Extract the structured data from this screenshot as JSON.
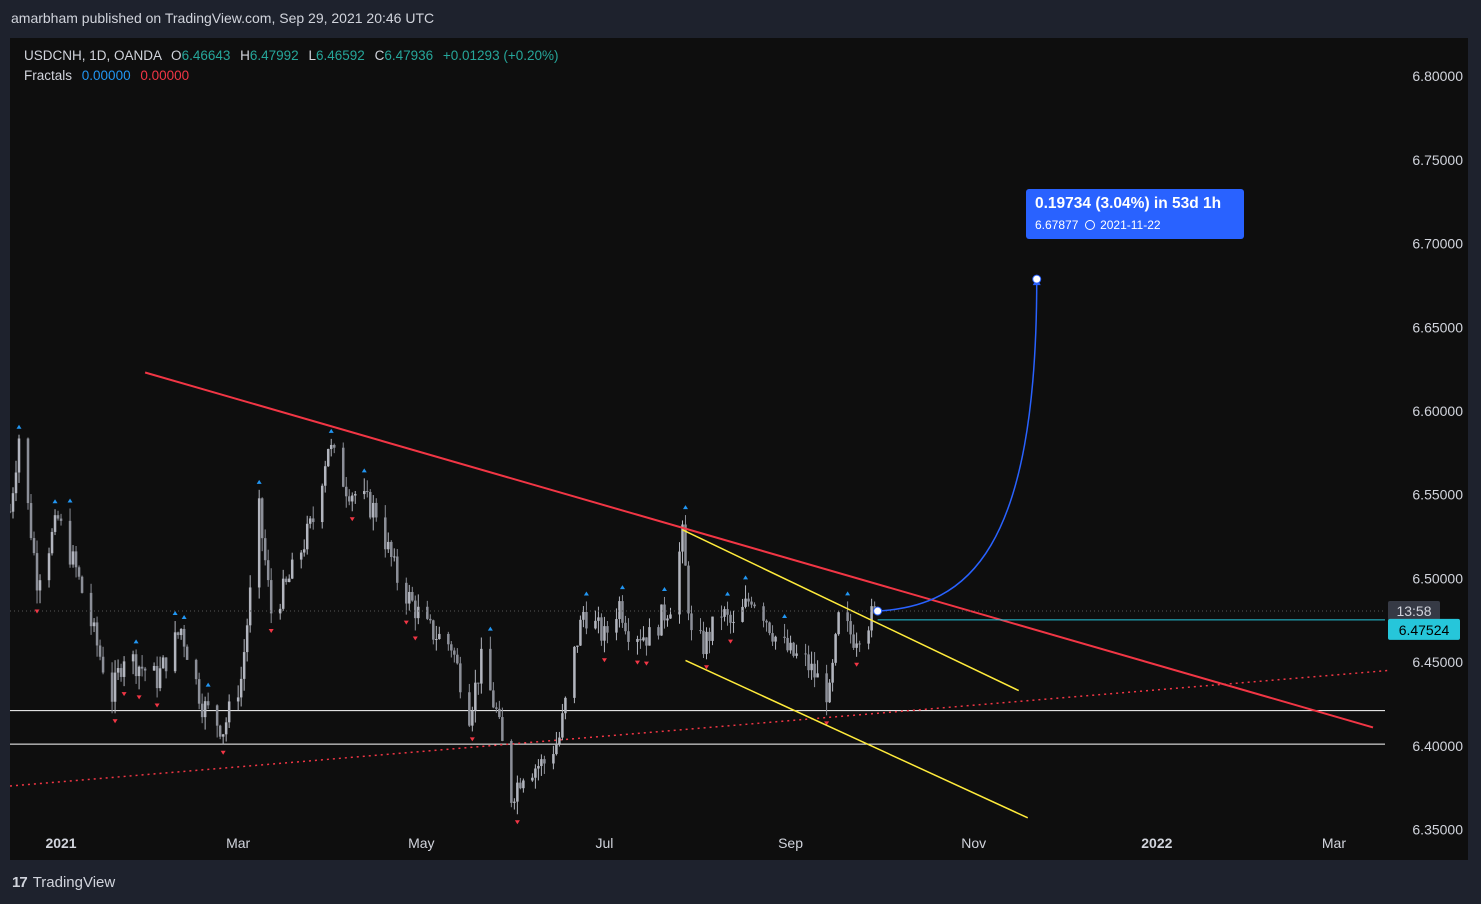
{
  "header": {
    "published": "amarbham published on TradingView.com, Sep 29, 2021 20:46 UTC"
  },
  "legend": {
    "symbol": "USDCNH, 1D, OANDA",
    "o_label": "O",
    "o_value": "6.46643",
    "h_label": "H",
    "h_value": "6.47992",
    "l_label": "L",
    "l_value": "6.46592",
    "c_label": "C",
    "c_value": "6.47936",
    "change": "+0.01293 (+0.20%)",
    "fractals_label": "Fractals",
    "fractals_up": "0.00000",
    "fractals_down": "0.00000"
  },
  "projection": {
    "line1": "0.19734 (3.04%) in 53d 1h",
    "price": "6.67877",
    "date": "2021-11-22"
  },
  "price_labels": {
    "countdown": "13:58",
    "last_price": "6.47524"
  },
  "brand": {
    "name": "TradingView"
  },
  "colors": {
    "bg": "#0e0e0e",
    "frame": "#1e222d",
    "candle_up": "#b2b5be",
    "candle_down": "#8c8f98",
    "trend_red": "#f23645",
    "channel_yellow": "#ffeb3b",
    "support_white": "#ffffff",
    "projection_blue": "#2962ff",
    "last_price_teal": "#26c6da",
    "fractal_up": "#2196f3",
    "fractal_down": "#f23645"
  },
  "chart_data": {
    "type": "candlestick",
    "symbol": "USDCNH",
    "interval": "1D",
    "y_ticks": [
      6.35,
      6.4,
      6.45,
      6.5,
      6.55,
      6.6,
      6.65,
      6.7,
      6.75,
      6.8
    ],
    "y_tick_labels": [
      "6.35000",
      "6.40000",
      "6.45000",
      "6.50000",
      "6.55000",
      "6.60000",
      "6.65000",
      "6.70000",
      "6.75000",
      "6.80000"
    ],
    "ylim": [
      6.3318,
      6.8228
    ],
    "x_range": [
      "2020-12-15",
      "2022-03-18"
    ],
    "x_ticks": [
      {
        "date": "2021-01-01",
        "label": "2021"
      },
      {
        "date": "2021-03-01",
        "label": "Mar"
      },
      {
        "date": "2021-05-01",
        "label": "May"
      },
      {
        "date": "2021-07-01",
        "label": "Jul"
      },
      {
        "date": "2021-09-01",
        "label": "Sep"
      },
      {
        "date": "2021-11-01",
        "label": "Nov"
      },
      {
        "date": "2022-01-01",
        "label": "2022"
      },
      {
        "date": "2022-03-01",
        "label": "Mar"
      }
    ],
    "anchors": [
      {
        "date": "2020-12-15",
        "close": 6.54
      },
      {
        "date": "2020-12-18",
        "close": 6.585
      },
      {
        "date": "2020-12-24",
        "close": 6.5
      },
      {
        "date": "2020-12-31",
        "close": 6.535
      },
      {
        "date": "2021-01-06",
        "close": 6.505
      },
      {
        "date": "2021-01-13",
        "close": 6.46
      },
      {
        "date": "2021-01-18",
        "close": 6.43
      },
      {
        "date": "2021-01-22",
        "close": 6.455
      },
      {
        "date": "2021-02-02",
        "close": 6.44
      },
      {
        "date": "2021-02-10",
        "close": 6.47
      },
      {
        "date": "2021-02-17",
        "close": 6.425
      },
      {
        "date": "2021-02-24",
        "close": 6.41
      },
      {
        "date": "2021-03-02",
        "close": 6.44
      },
      {
        "date": "2021-03-08",
        "close": 6.54
      },
      {
        "date": "2021-03-12",
        "close": 6.48
      },
      {
        "date": "2021-03-17",
        "close": 6.495
      },
      {
        "date": "2021-03-26",
        "close": 6.535
      },
      {
        "date": "2021-03-31",
        "close": 6.58
      },
      {
        "date": "2021-04-06",
        "close": 6.555
      },
      {
        "date": "2021-04-16",
        "close": 6.54
      },
      {
        "date": "2021-04-23",
        "close": 6.5
      },
      {
        "date": "2021-05-03",
        "close": 6.47
      },
      {
        "date": "2021-05-11",
        "close": 6.46
      },
      {
        "date": "2021-05-17",
        "close": 6.42
      },
      {
        "date": "2021-05-21",
        "close": 6.45
      },
      {
        "date": "2021-05-26",
        "close": 6.42
      },
      {
        "date": "2021-05-31",
        "close": 6.37
      },
      {
        "date": "2021-06-04",
        "close": 6.385
      },
      {
        "date": "2021-06-11",
        "close": 6.39
      },
      {
        "date": "2021-06-16",
        "close": 6.405
      },
      {
        "date": "2021-06-21",
        "close": 6.455
      },
      {
        "date": "2021-06-24",
        "close": 6.48
      },
      {
        "date": "2021-07-01",
        "close": 6.465
      },
      {
        "date": "2021-07-06",
        "close": 6.485
      },
      {
        "date": "2021-07-09",
        "close": 6.47
      },
      {
        "date": "2021-07-16",
        "close": 6.465
      },
      {
        "date": "2021-07-23",
        "close": 6.485
      },
      {
        "date": "2021-07-27",
        "close": 6.525
      },
      {
        "date": "2021-07-30",
        "close": 6.465
      },
      {
        "date": "2021-08-03",
        "close": 6.46
      },
      {
        "date": "2021-08-09",
        "close": 6.48
      },
      {
        "date": "2021-08-13",
        "close": 6.47
      },
      {
        "date": "2021-08-19",
        "close": 6.49
      },
      {
        "date": "2021-08-23",
        "close": 6.48
      },
      {
        "date": "2021-08-27",
        "close": 6.465
      },
      {
        "date": "2021-09-01",
        "close": 6.455
      },
      {
        "date": "2021-09-06",
        "close": 6.45
      },
      {
        "date": "2021-09-10",
        "close": 6.44
      },
      {
        "date": "2021-09-14",
        "close": 6.43
      },
      {
        "date": "2021-09-17",
        "close": 6.475
      },
      {
        "date": "2021-09-22",
        "close": 6.465
      },
      {
        "date": "2021-09-29",
        "close": 6.479
      }
    ],
    "drawings": {
      "red_trendline": [
        [
          "2021-01-29",
          6.623
        ],
        [
          "2022-03-14",
          6.411
        ]
      ],
      "yellow_upper": [
        [
          "2021-07-27",
          6.529
        ],
        [
          "2021-11-16",
          6.433
        ]
      ],
      "yellow_lower": [
        [
          "2021-07-28",
          6.451
        ],
        [
          "2021-11-19",
          6.357
        ]
      ],
      "red_dotted": [
        [
          "2020-12-15",
          6.376
        ],
        [
          "2022-03-19",
          6.445
        ]
      ],
      "support_lines": [
        6.421,
        6.401
      ],
      "projection": {
        "from": [
          "2021-09-30",
          6.4805
        ],
        "to": [
          "2021-11-22",
          6.67877
        ]
      }
    },
    "last_price": 6.47524
  }
}
